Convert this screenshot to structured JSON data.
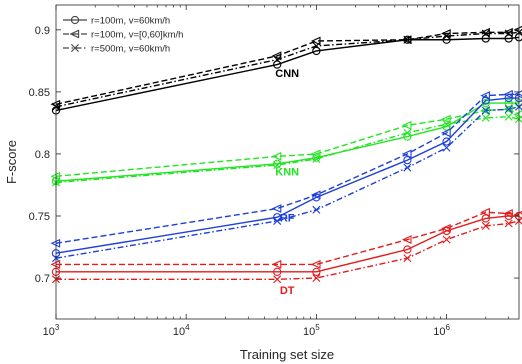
{
  "chart_data": {
    "type": "line",
    "xlabel": "Training set size",
    "ylabel": "F-score",
    "xscale": "log",
    "xlim": [
      1000,
      3600000
    ],
    "ylim": [
      0.667,
      0.92
    ],
    "grid": false,
    "legend_position": "top-left",
    "x_ticks": [
      {
        "value": 1000,
        "base": "10",
        "exp": "3"
      },
      {
        "value": 10000,
        "base": "10",
        "exp": "4"
      },
      {
        "value": 100000,
        "base": "10",
        "exp": "5"
      },
      {
        "value": 1000000,
        "base": "10",
        "exp": "6"
      }
    ],
    "y_ticks": [
      {
        "value": 0.7,
        "label": "0.7"
      },
      {
        "value": 0.75,
        "label": "0.75"
      },
      {
        "value": 0.8,
        "label": "0.8"
      },
      {
        "value": 0.85,
        "label": "0.85"
      },
      {
        "value": 0.9,
        "label": "0.9"
      }
    ],
    "x": [
      1000,
      50000,
      100000,
      500000,
      1000000,
      2000000,
      3000000,
      3600000
    ],
    "legend": [
      {
        "label": "r=100m, v=60km/h",
        "dash": "solid",
        "marker": "circle"
      },
      {
        "label": "r=100m, v=[0,60]km/h",
        "dash": "dashed",
        "marker": "triangle-left"
      },
      {
        "label": "r=500m, v=60km/h",
        "dash": "dashdot",
        "marker": "x"
      }
    ],
    "groups": [
      {
        "label": "CNN",
        "color": "#000000",
        "series": [
          {
            "style": 0,
            "values": [
              0.835,
              0.872,
              0.883,
              0.892,
              0.892,
              0.893,
              0.893,
              0.894
            ]
          },
          {
            "style": 1,
            "values": [
              0.84,
              0.879,
              0.891,
              0.892,
              0.897,
              0.898,
              0.898,
              0.9
            ]
          },
          {
            "style": 2,
            "values": [
              0.838,
              0.876,
              0.887,
              0.892,
              0.895,
              0.897,
              0.897,
              0.898
            ]
          }
        ]
      },
      {
        "label": "KNN",
        "color": "#22e622",
        "series": [
          {
            "style": 0,
            "values": [
              0.778,
              0.792,
              0.797,
              0.814,
              0.822,
              0.841,
              0.841,
              0.841
            ]
          },
          {
            "style": 1,
            "values": [
              0.782,
              0.798,
              0.8,
              0.823,
              0.828,
              0.835,
              0.836,
              0.832
            ]
          },
          {
            "style": 2,
            "values": [
              0.777,
              0.791,
              0.796,
              0.817,
              0.824,
              0.829,
              0.83,
              0.828
            ]
          }
        ]
      },
      {
        "label": "RF",
        "color": "#1e3fd8",
        "series": [
          {
            "style": 0,
            "values": [
              0.72,
              0.749,
              0.765,
              0.795,
              0.81,
              0.843,
              0.845,
              0.845
            ]
          },
          {
            "style": 1,
            "values": [
              0.728,
              0.756,
              0.767,
              0.8,
              0.817,
              0.847,
              0.848,
              0.848
            ]
          },
          {
            "style": 2,
            "values": [
              0.716,
              0.746,
              0.755,
              0.789,
              0.805,
              0.835,
              0.836,
              0.838
            ]
          }
        ]
      },
      {
        "label": "DT",
        "color": "#e41a1c",
        "series": [
          {
            "style": 0,
            "values": [
              0.705,
              0.705,
              0.705,
              0.723,
              0.738,
              0.748,
              0.75,
              0.75
            ]
          },
          {
            "style": 1,
            "values": [
              0.711,
              0.711,
              0.711,
              0.731,
              0.74,
              0.753,
              0.752,
              0.751
            ]
          },
          {
            "style": 2,
            "values": [
              0.699,
              0.699,
              0.7,
              0.716,
              0.731,
              0.742,
              0.744,
              0.746
            ]
          }
        ]
      }
    ]
  }
}
